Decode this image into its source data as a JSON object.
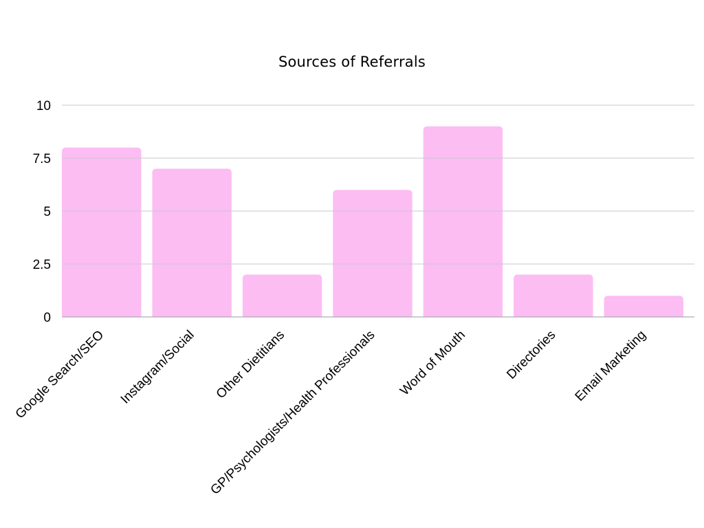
{
  "chart_data": {
    "type": "bar",
    "title": "Sources of Referrals",
    "categories": [
      "Google Search/SEO",
      "Instagram/Social",
      "Other Dietitians",
      "GP/Psychologists/Health Professionals",
      "Word of Mouth",
      "Directories",
      "Email Marketing"
    ],
    "values": [
      8,
      7,
      2,
      6,
      9,
      2,
      1
    ],
    "ylim": [
      0,
      10
    ],
    "yticks": [
      "0",
      "2.5",
      "5",
      "7.5",
      "10"
    ],
    "xlabel": "",
    "ylabel": "",
    "grid": true,
    "colors": {
      "bar": "#fcbdf3",
      "grid": "#c8c8d0",
      "axis": "#9a9aa5"
    }
  }
}
